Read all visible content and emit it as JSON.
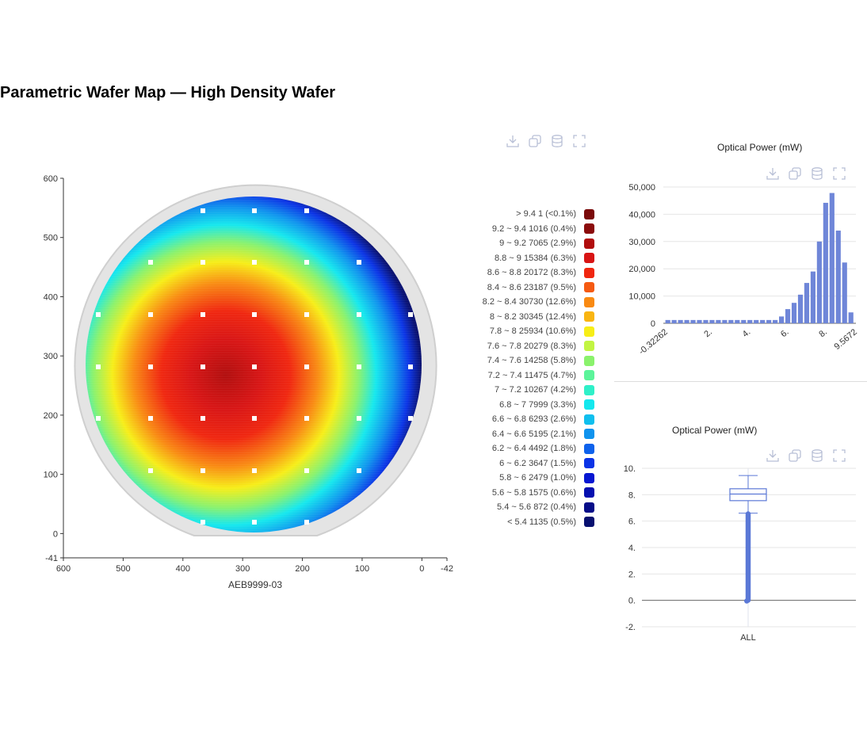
{
  "page_title": "Parametric Wafer Map — High Density Wafer",
  "toolbar": {
    "icons": [
      "download-icon",
      "copy-icon",
      "database-icon",
      "fullscreen-icon"
    ]
  },
  "chart_data": [
    {
      "type": "heatmap",
      "title": "",
      "xlabel": "AEB9999-03",
      "ylabel": "",
      "x_ticks": [
        "600",
        "500",
        "400",
        "300",
        "200",
        "100",
        "0",
        "-42"
      ],
      "y_ticks": [
        "600",
        "500",
        "400",
        "300",
        "200",
        "100",
        "0",
        "-41"
      ],
      "xlim": [
        600,
        -42
      ],
      "ylim": [
        -41,
        600
      ],
      "legend": [
        {
          "range": "> 9.4",
          "count": "1",
          "pct": "(<0.1%)",
          "color": "#7a0a0a"
        },
        {
          "range": "9.2 ~ 9.4",
          "count": "1016",
          "pct": "(0.4%)",
          "color": "#8b0b0b"
        },
        {
          "range": "9 ~ 9.2",
          "count": "7065",
          "pct": "(2.9%)",
          "color": "#b10d0d"
        },
        {
          "range": "8.8 ~ 9",
          "count": "15384",
          "pct": "(6.3%)",
          "color": "#d81414"
        },
        {
          "range": "8.6 ~ 8.8",
          "count": "20172",
          "pct": "(8.3%)",
          "color": "#f0260f"
        },
        {
          "range": "8.4 ~ 8.6",
          "count": "23187",
          "pct": "(9.5%)",
          "color": "#f55a12"
        },
        {
          "range": "8.2 ~ 8.4",
          "count": "30730",
          "pct": "(12.6%)",
          "color": "#f98a12"
        },
        {
          "range": "8 ~ 8.2",
          "count": "30345",
          "pct": "(12.4%)",
          "color": "#f9b512"
        },
        {
          "range": "7.8 ~ 8",
          "count": "25934",
          "pct": "(10.6%)",
          "color": "#f7ee17"
        },
        {
          "range": "7.6 ~ 7.8",
          "count": "20279",
          "pct": "(8.3%)",
          "color": "#c2f542"
        },
        {
          "range": "7.4 ~ 7.6",
          "count": "14258",
          "pct": "(5.8%)",
          "color": "#8af26c"
        },
        {
          "range": "7.2 ~ 7.4",
          "count": "11475",
          "pct": "(4.7%)",
          "color": "#5cf49a"
        },
        {
          "range": "7 ~ 7.2",
          "count": "10267",
          "pct": "(4.2%)",
          "color": "#2ef0c8"
        },
        {
          "range": "6.8 ~ 7",
          "count": "7999",
          "pct": "(3.3%)",
          "color": "#14e8ee"
        },
        {
          "range": "6.6 ~ 6.8",
          "count": "6293",
          "pct": "(2.6%)",
          "color": "#0fbfee"
        },
        {
          "range": "6.4 ~ 6.6",
          "count": "5195",
          "pct": "(2.1%)",
          "color": "#0f93ee"
        },
        {
          "range": "6.2 ~ 6.4",
          "count": "4492",
          "pct": "(1.8%)",
          "color": "#0d62ec"
        },
        {
          "range": "6 ~ 6.2",
          "count": "3647",
          "pct": "(1.5%)",
          "color": "#0a33e6"
        },
        {
          "range": "5.8 ~ 6",
          "count": "2479",
          "pct": "(1.0%)",
          "color": "#0617d2"
        },
        {
          "range": "5.6 ~ 5.8",
          "count": "1575",
          "pct": "(0.6%)",
          "color": "#0510b0"
        },
        {
          "range": "5.4 ~ 5.6",
          "count": "872",
          "pct": "(0.4%)",
          "color": "#060d88"
        },
        {
          "range": "< 5.4",
          "count": "1135",
          "pct": "(0.5%)",
          "color": "#081070"
        }
      ]
    },
    {
      "type": "bar",
      "title": "Optical Power (mW)",
      "x_ticks": [
        "-0.32262",
        "2.",
        "4.",
        "6.",
        "8.",
        "9.5672"
      ],
      "y_ticks": [
        "0",
        "10,000",
        "20,000",
        "30,000",
        "40,000",
        "50,000"
      ],
      "ylim": [
        0,
        50000
      ],
      "bar_color": "#6f86d8",
      "values": [
        1200,
        1200,
        1200,
        1200,
        1200,
        1200,
        1200,
        1200,
        1200,
        1200,
        1200,
        1200,
        1200,
        1200,
        1200,
        1200,
        1200,
        1200,
        2500,
        5200,
        7500,
        10500,
        14800,
        19000,
        30000,
        44200,
        47800,
        34000,
        22300,
        4000
      ]
    },
    {
      "type": "box",
      "title": "Optical Power (mW)",
      "categories": [
        "ALL"
      ],
      "y_ticks": [
        "10.",
        "8.",
        "6.",
        "4.",
        "2.",
        "0.",
        "-2."
      ],
      "ylim": [
        -2,
        10
      ],
      "stats": {
        "min": 6.6,
        "q1": 7.55,
        "median": 8.05,
        "q3": 8.45,
        "max": 9.45
      },
      "outlier_range": [
        -0.05,
        6.6
      ],
      "color": "#5b78d6"
    }
  ]
}
